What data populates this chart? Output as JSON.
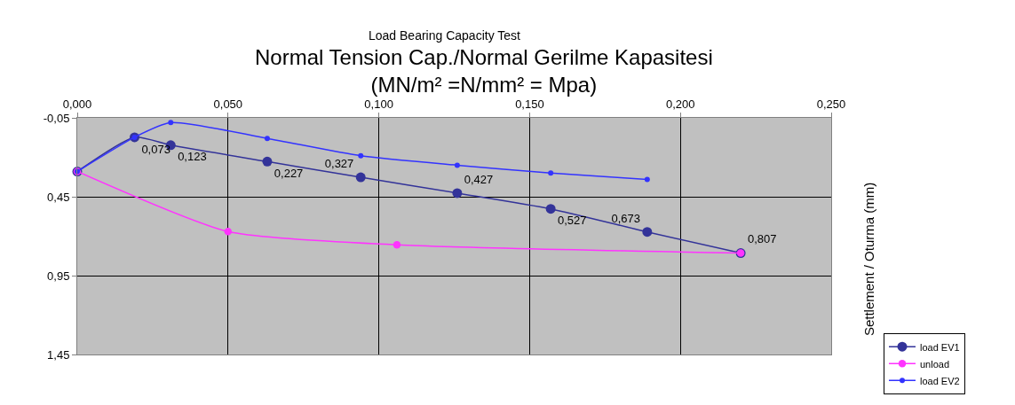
{
  "chart_data": {
    "type": "line",
    "title": "Load Bearing Capacity Test",
    "subtitle": "Normal Tension Cap./Normal Gerilme Kapasitesi\n(MN/m² =N/mm² = Mpa)",
    "ylabel": "Settlement / Oturma (mm)",
    "xlim": [
      0,
      0.25
    ],
    "xticks": [
      {
        "value": 0,
        "label": "0,000"
      },
      {
        "value": 0.05,
        "label": "0,050"
      },
      {
        "value": 0.1,
        "label": "0,100"
      },
      {
        "value": 0.15,
        "label": "0,150"
      },
      {
        "value": 0.2,
        "label": "0,200"
      },
      {
        "value": 0.25,
        "label": "0,250"
      }
    ],
    "ylim": [
      1.45,
      -0.05
    ],
    "yticks": [
      {
        "value": -0.05,
        "label": "-0,05"
      },
      {
        "value": 0.45,
        "label": "0,45"
      },
      {
        "value": 0.95,
        "label": "0,95"
      },
      {
        "value": 1.45,
        "label": "1,45"
      }
    ],
    "grid": true,
    "legend": "bottom right",
    "marker": "circle",
    "line_style": "solid",
    "series": [
      {
        "name": "load EV1",
        "color": "#333399",
        "x": [
          0,
          0.019,
          0.031,
          0.063,
          0.094,
          0.126,
          0.157,
          0.189,
          0.22
        ],
        "values": [
          0.29,
          0.073,
          0.123,
          0.227,
          0.327,
          0.427,
          0.527,
          0.673,
          0.807
        ],
        "value_labels": [
          null,
          "0,073",
          "0,123",
          "0,227",
          "0,327",
          "0,427",
          "0,527",
          "0,673",
          "0,807"
        ]
      },
      {
        "name": "unload",
        "color": "#ff33ff",
        "x": [
          0,
          0.05,
          0.106,
          0.22
        ],
        "values": [
          0.29,
          0.671,
          0.755,
          0.807
        ]
      },
      {
        "name": "load EV2",
        "color": "#3333ff",
        "x": [
          0,
          0.019,
          0.031,
          0.063,
          0.094,
          0.126,
          0.157,
          0.189
        ],
        "values": [
          0.29,
          0.073,
          -0.02,
          0.08,
          0.19,
          0.25,
          0.3,
          0.34
        ]
      }
    ]
  }
}
